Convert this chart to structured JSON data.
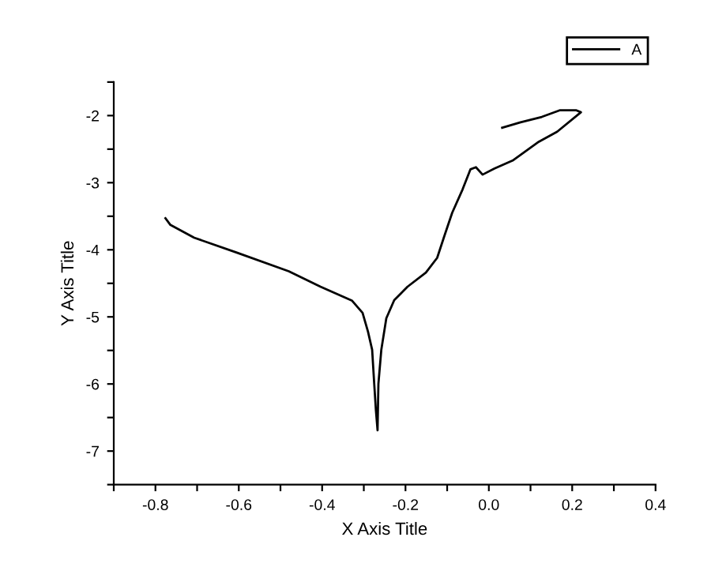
{
  "chart_data": {
    "type": "line",
    "xlabel": "X Axis Title",
    "ylabel": "Y Axis Title",
    "xlim": [
      -0.9,
      0.4
    ],
    "ylim": [
      -7.5,
      -1.5
    ],
    "xticks": [
      {
        "value": -0.9,
        "label": null
      },
      -0.8,
      {
        "value": -0.7,
        "label": null
      },
      -0.6,
      {
        "value": -0.5,
        "label": null
      },
      -0.4,
      {
        "value": -0.3,
        "label": null
      },
      -0.2,
      {
        "value": -0.1,
        "label": null
      },
      {
        "value": 0,
        "label": "0.0"
      },
      {
        "value": 0.1,
        "label": null
      },
      0.2,
      {
        "value": 0.3,
        "label": null
      },
      0.4
    ],
    "yticks": [
      {
        "value": -7.5,
        "label": null
      },
      -7,
      {
        "value": -6.5,
        "label": null
      },
      -6,
      {
        "value": -5.5,
        "label": null
      },
      -5,
      {
        "value": -4.5,
        "label": null
      },
      -4,
      {
        "value": -3.5,
        "label": null
      },
      -3,
      {
        "value": -2.5,
        "label": null
      },
      -2,
      {
        "value": -1.5,
        "label": null
      }
    ],
    "grid": false,
    "legend": "top right",
    "marker": "none",
    "line_style": "solid",
    "series": [
      {
        "name": "A",
        "color": "#000000",
        "x": [
          -0.776,
          -0.764,
          -0.707,
          -0.606,
          -0.48,
          -0.404,
          -0.328,
          -0.303,
          -0.29,
          -0.28,
          -0.275,
          -0.271,
          -0.267,
          -0.265,
          -0.258,
          -0.246,
          -0.227,
          -0.195,
          -0.151,
          -0.124,
          -0.107,
          -0.088,
          -0.063,
          -0.044,
          -0.031,
          -0.015,
          0.013,
          0.057,
          0.12,
          0.164,
          0.221,
          0.209,
          0.171,
          0.127,
          0.076,
          0.032
        ],
        "values": [
          -3.53,
          -3.63,
          -3.82,
          -4.04,
          -4.32,
          -4.55,
          -4.76,
          -4.94,
          -5.22,
          -5.49,
          -6.0,
          -6.39,
          -6.69,
          -6.0,
          -5.49,
          -5.02,
          -4.75,
          -4.55,
          -4.34,
          -4.12,
          -3.8,
          -3.45,
          -3.1,
          -2.8,
          -2.77,
          -2.88,
          -2.79,
          -2.67,
          -2.39,
          -2.24,
          -1.95,
          -1.92,
          -1.92,
          -2.02,
          -2.1,
          -2.18
        ]
      }
    ]
  }
}
